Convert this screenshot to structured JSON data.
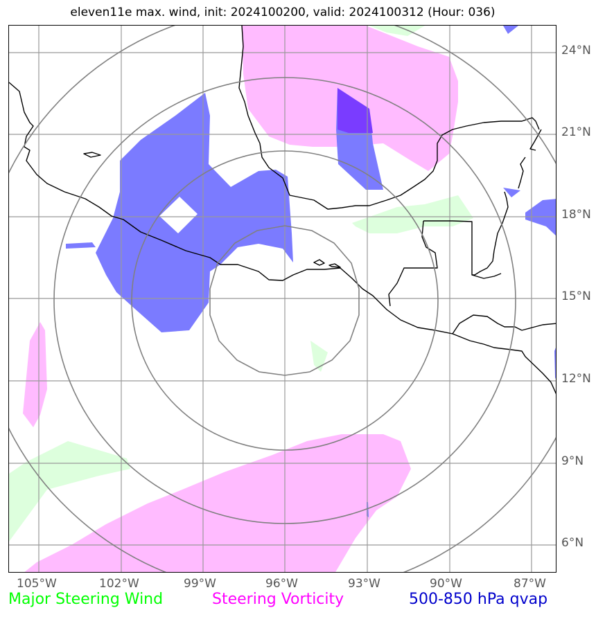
{
  "title": "eleven11e max. wind, init: 2024100200, valid: 2024100312 (Hour: 036)",
  "lat_labels": [
    "24°N",
    "21°N",
    "18°N",
    "15°N",
    "12°N",
    "9°N",
    "6°N"
  ],
  "lon_labels": [
    "105°W",
    "102°W",
    "99°W",
    "96°W",
    "93°W",
    "90°W",
    "87°W"
  ],
  "legend": {
    "steering_wind": "Major Steering Wind",
    "steering_vorticity": "Steering Vorticity",
    "qvap": "500-850 hPa qvap"
  },
  "colors": {
    "steering_wind": "#00ff00",
    "steering_vorticity": "#ff00ff",
    "qvap": "#0000cc",
    "wind_fill": "#ddffdd",
    "vorticity_fill": "#ffbbff",
    "qvap_fill": "#7b7bff",
    "qvap_dark_fill": "#7a3cff",
    "grid": "#999999",
    "range_rings": "#808080",
    "coastline": "#000000"
  },
  "map_extent": {
    "lon_min": -106,
    "lon_max": -86,
    "lat_min": 5,
    "lat_max": 25
  },
  "storm_center": {
    "lon": -96,
    "lat": 14
  },
  "range_rings_count": 4
}
